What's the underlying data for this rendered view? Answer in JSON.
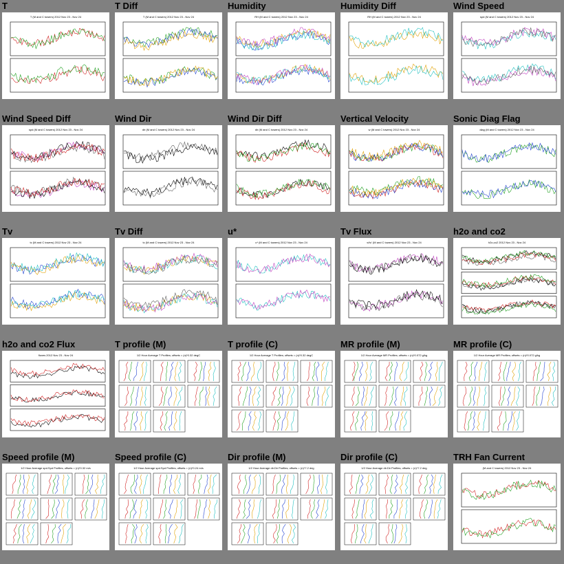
{
  "thumbnails": [
    {
      "label": "T",
      "kind": "ts2",
      "caption": "T (M and C towers) 2012 Nov 23 - Nov 24"
    },
    {
      "label": "T Diff",
      "kind": "ts2",
      "caption": "T (M and C towers) 2012 Nov 23 - Nov 24"
    },
    {
      "label": "Humidity",
      "kind": "ts2",
      "caption": "RH (M and C towers) 2012 Nov 23 - Nov 24"
    },
    {
      "label": "Humidity Diff",
      "kind": "ts2",
      "caption": "RH (M and C towers) 2012 Nov 23 - Nov 24"
    },
    {
      "label": "Wind Speed",
      "kind": "ts2",
      "caption": "spd (M and C towers) 2012 Nov 23 - Nov 24"
    },
    {
      "label": "Wind Speed Diff",
      "kind": "ts2",
      "caption": "spd (M and C towers) 2012 Nov 23 - Nov 24"
    },
    {
      "label": "Wind Dir",
      "kind": "ts2",
      "caption": "dir (M and C towers) 2012 Nov 23 - Nov 24"
    },
    {
      "label": "Wind Dir Diff",
      "kind": "ts2",
      "caption": "dir (M and C towers) 2012 Nov 23 - Nov 24"
    },
    {
      "label": "Vertical Velocity",
      "kind": "ts2",
      "caption": "w (M and C towers) 2012 Nov 23 - Nov 24"
    },
    {
      "label": "Sonic Diag Flag",
      "kind": "ts2",
      "caption": "diag (M and C towers) 2012 Nov 23 - Nov 24"
    },
    {
      "label": "Tv",
      "kind": "ts2",
      "caption": "tc (M and C towers) 2012 Nov 23 - Nov 24"
    },
    {
      "label": "Tv Diff",
      "kind": "ts2",
      "caption": "tc (M and C towers) 2012 Nov 23 - Nov 24"
    },
    {
      "label": "u*",
      "kind": "ts2",
      "caption": "u* (M and C towers) 2012 Nov 23 - Nov 24"
    },
    {
      "label": "Tv Flux",
      "kind": "ts2",
      "caption": "w'tc' (M and C towers) 2012 Nov 23 - Nov 24"
    },
    {
      "label": "h2o and co2",
      "kind": "ts3",
      "caption": "h2o,co2 2012 Nov 23 - Nov 24"
    },
    {
      "label": "h2o and co2 Flux",
      "kind": "ts3",
      "caption": "fluxes 2012 Nov 23 - Nov 24"
    },
    {
      "label": "T profile (M)",
      "kind": "prof",
      "caption": "1/2 Hour Average T Profiles; offsets = (n)*0.32 degC"
    },
    {
      "label": "T profile (C)",
      "kind": "prof",
      "caption": "1/2 Hour Average T Profiles; offsets = (n)*0.32 degC"
    },
    {
      "label": "MR profile (M)",
      "kind": "prof",
      "caption": "1/2 Hour Average MR Profiles; offsets = (n)*0.072 g/kg"
    },
    {
      "label": "MR profile (C)",
      "kind": "prof",
      "caption": "1/2 Hour Average MR Profiles; offsets = (n)*0.072 g/kg"
    },
    {
      "label": "Speed profile (M)",
      "kind": "prof",
      "caption": "1/2 Hour Average spd.Spd Profiles; offsets = (n)*0.32 m/s"
    },
    {
      "label": "Speed profile (C)",
      "kind": "prof",
      "caption": "1/2 Hour Average spd.Spd Profiles; offsets = (n)*0.24 m/s"
    },
    {
      "label": "Dir profile (M)",
      "kind": "prof",
      "caption": "1/2 Hour Average dir.Dir Profiles; offsets = (n)*7.2 deg"
    },
    {
      "label": "Dir profile (C)",
      "kind": "prof",
      "caption": "1/2 Hour Average dir.Dir Profiles; offsets = (n)*7.2 deg"
    },
    {
      "label": "TRH Fan Current",
      "kind": "ts2",
      "caption": "(M and C towers) 2012 Nov 23 - Nov 24"
    }
  ],
  "colors": {
    "background": "#808080",
    "series": [
      "#d02020",
      "#20a020",
      "#2040d0",
      "#e0a000",
      "#20c0c0",
      "#c040c0",
      "#606060",
      "#000000"
    ]
  }
}
